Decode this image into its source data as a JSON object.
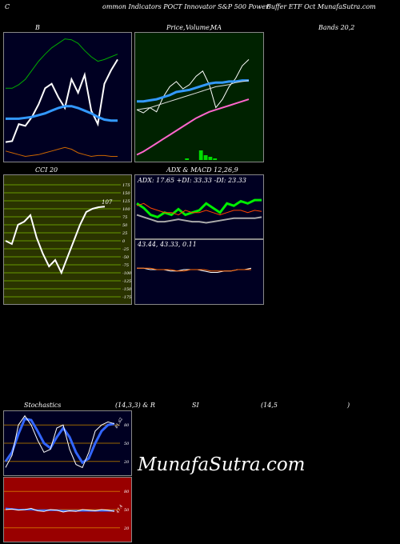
{
  "header": {
    "left": "C",
    "mid": "ommon  Indicators POCT Innovator S&P 500  Power",
    "right": "Buffer ETF Oct MunafaSutra.com"
  },
  "labels": {
    "bb": "B",
    "price": "Price,",
    "volume": "Volume,",
    "ma": "MA",
    "bands": "Bands 20,2",
    "cci": "CCI 20",
    "adx": "ADX  & MACD 12,26,9",
    "stoch": "Stochastics",
    "stoch_params": "(14,3,3) & R",
    "si": "SI",
    "rsi_params": "(14,5",
    "rsi_close": ")"
  },
  "adx_text": "ADX: 17.65  +DI: 33.33 -DI: 23.33",
  "macd_text": "43.44,  43.33,  0.11",
  "cci_value_label": "107",
  "cci_ticks": [
    "175",
    "150",
    "125",
    "100",
    "75",
    "50",
    "25",
    "0",
    "-25",
    "-50",
    "-75",
    "-100",
    "-125",
    "-150",
    "-175"
  ],
  "stoch_ticks": [
    "80",
    "50",
    "20"
  ],
  "stoch_value_label": "81.62",
  "rsi_ticks": [
    "80",
    "50",
    "20"
  ],
  "rsi_value_label": "47.4",
  "brand": "MunafaSutra.com",
  "colors": {
    "bb_bg": "#000022",
    "pm_bg": "#002200",
    "cci_bg": "#2a3300",
    "rsi_bg": "#990000",
    "middle_band": "#3399ff",
    "upper_band": "#00aa00",
    "lower_band": "#cc6600",
    "adx_plus": "#00ee00",
    "adx_minus": "#ff4400"
  },
  "chart_data": [
    {
      "type": "line",
      "panel": "bollinger",
      "series": [
        {
          "values": [
            20,
            21,
            40,
            38,
            48,
            62,
            80,
            85,
            70,
            58,
            90,
            75,
            95,
            55,
            40,
            85,
            100,
            112
          ]
        },
        {
          "values": [
            46,
            46,
            46,
            47,
            48,
            50,
            52,
            55,
            58,
            60,
            60,
            58,
            55,
            52,
            48,
            45,
            44,
            44
          ]
        },
        {
          "values": [
            80,
            80,
            84,
            90,
            100,
            110,
            118,
            125,
            130,
            135,
            134,
            130,
            122,
            115,
            110,
            112,
            115,
            118
          ]
        },
        {
          "values": [
            10,
            8,
            6,
            4,
            5,
            6,
            8,
            10,
            12,
            14,
            12,
            8,
            6,
            4,
            5,
            5,
            4,
            4
          ]
        }
      ]
    },
    {
      "type": "line",
      "panel": "price_ma",
      "series": [
        {
          "values": [
            48,
            45,
            50,
            46,
            60,
            70,
            75,
            68,
            72,
            80,
            85,
            72,
            50,
            58,
            70,
            78,
            90,
            96
          ]
        },
        {
          "values": [
            56,
            56,
            57,
            58,
            60,
            62,
            65,
            66,
            67,
            69,
            71,
            73,
            74,
            74,
            75,
            75,
            76,
            76
          ]
        },
        {
          "values": [
            48,
            49,
            50,
            52,
            54,
            56,
            58,
            60,
            62,
            64,
            66,
            68,
            70,
            71,
            72,
            74,
            75,
            76
          ]
        },
        {
          "values": [
            5,
            8,
            12,
            16,
            20,
            24,
            28,
            32,
            36,
            40,
            43,
            46,
            48,
            50,
            52,
            54,
            56,
            58
          ]
        }
      ]
    },
    {
      "type": "bar",
      "panel": "volume",
      "values": [
        0,
        0,
        0,
        0,
        0,
        0,
        0,
        0,
        0,
        0,
        1,
        0,
        0,
        6,
        3,
        2,
        1,
        0,
        0,
        0,
        0,
        0,
        0,
        0
      ]
    },
    {
      "type": "line",
      "panel": "cci",
      "ylim": [
        -175,
        175
      ],
      "values": [
        0,
        -10,
        50,
        60,
        80,
        10,
        -40,
        -80,
        -60,
        -100,
        -50,
        0,
        50,
        90,
        100,
        105,
        107
      ]
    },
    {
      "type": "line",
      "panel": "adx",
      "series": [
        {
          "name": "ADX",
          "values": [
            20,
            18,
            16,
            14,
            14,
            15,
            16,
            15,
            14,
            14,
            13,
            14,
            15,
            16,
            17,
            17,
            17,
            17,
            18
          ]
        },
        {
          "name": "+DI",
          "values": [
            30,
            26,
            20,
            18,
            22,
            20,
            25,
            20,
            22,
            24,
            30,
            26,
            22,
            30,
            28,
            32,
            30,
            33,
            33
          ]
        },
        {
          "name": "-DI",
          "values": [
            28,
            30,
            26,
            24,
            22,
            22,
            20,
            24,
            22,
            22,
            24,
            22,
            20,
            22,
            24,
            24,
            22,
            24,
            23
          ]
        }
      ]
    },
    {
      "type": "line",
      "panel": "macd",
      "series": [
        {
          "values": [
            1,
            1,
            0,
            0,
            0,
            -1,
            -1,
            0,
            0,
            0,
            -1,
            -2,
            -2,
            -1,
            -1,
            0,
            0,
            1
          ]
        },
        {
          "values": [
            1,
            1,
            1,
            0,
            0,
            0,
            -1,
            -1,
            0,
            0,
            0,
            -1,
            -1,
            -1,
            -1,
            0,
            0,
            0
          ]
        }
      ]
    },
    {
      "type": "line",
      "panel": "stochastics",
      "ylim": [
        0,
        100
      ],
      "series": [
        {
          "values": [
            10,
            30,
            80,
            95,
            80,
            55,
            35,
            40,
            75,
            80,
            40,
            15,
            10,
            35,
            70,
            80,
            85,
            82
          ]
        },
        {
          "values": [
            20,
            35,
            65,
            90,
            88,
            70,
            50,
            42,
            60,
            75,
            60,
            35,
            18,
            25,
            50,
            70,
            80,
            82
          ]
        }
      ]
    },
    {
      "type": "line",
      "panel": "rsi",
      "ylim": [
        0,
        100
      ],
      "series": [
        {
          "values": [
            50,
            51,
            49,
            50,
            52,
            48,
            47,
            50,
            49,
            46,
            48,
            47,
            50,
            49,
            48,
            50,
            49,
            47
          ]
        },
        {
          "values": [
            52,
            51,
            50,
            50,
            50,
            49,
            49,
            49,
            49,
            48,
            48,
            48,
            48,
            48,
            48,
            48,
            48,
            48
          ]
        }
      ]
    }
  ]
}
